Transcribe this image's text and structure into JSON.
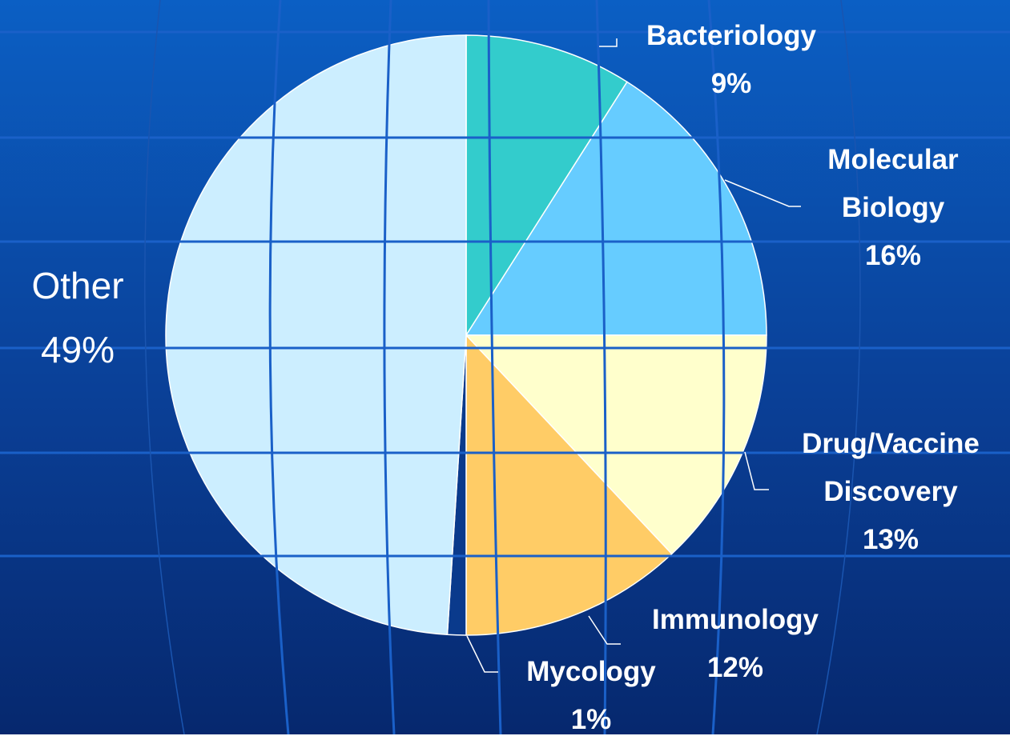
{
  "chart_data": {
    "type": "pie",
    "categories": [
      "Bacteriology",
      "Molecular Biology",
      "Drug/Vaccine Discovery",
      "Immunology",
      "Mycology",
      "Other"
    ],
    "values": [
      9,
      16,
      13,
      12,
      1,
      49
    ],
    "value_labels": [
      "9%",
      "16%",
      "13%",
      "12%",
      "1%",
      "49%"
    ],
    "colors": [
      "#33cccc",
      "#66ccff",
      "#ffffcc",
      "#ffcc66",
      "#0a3a8c",
      "#cceeff"
    ]
  }
}
